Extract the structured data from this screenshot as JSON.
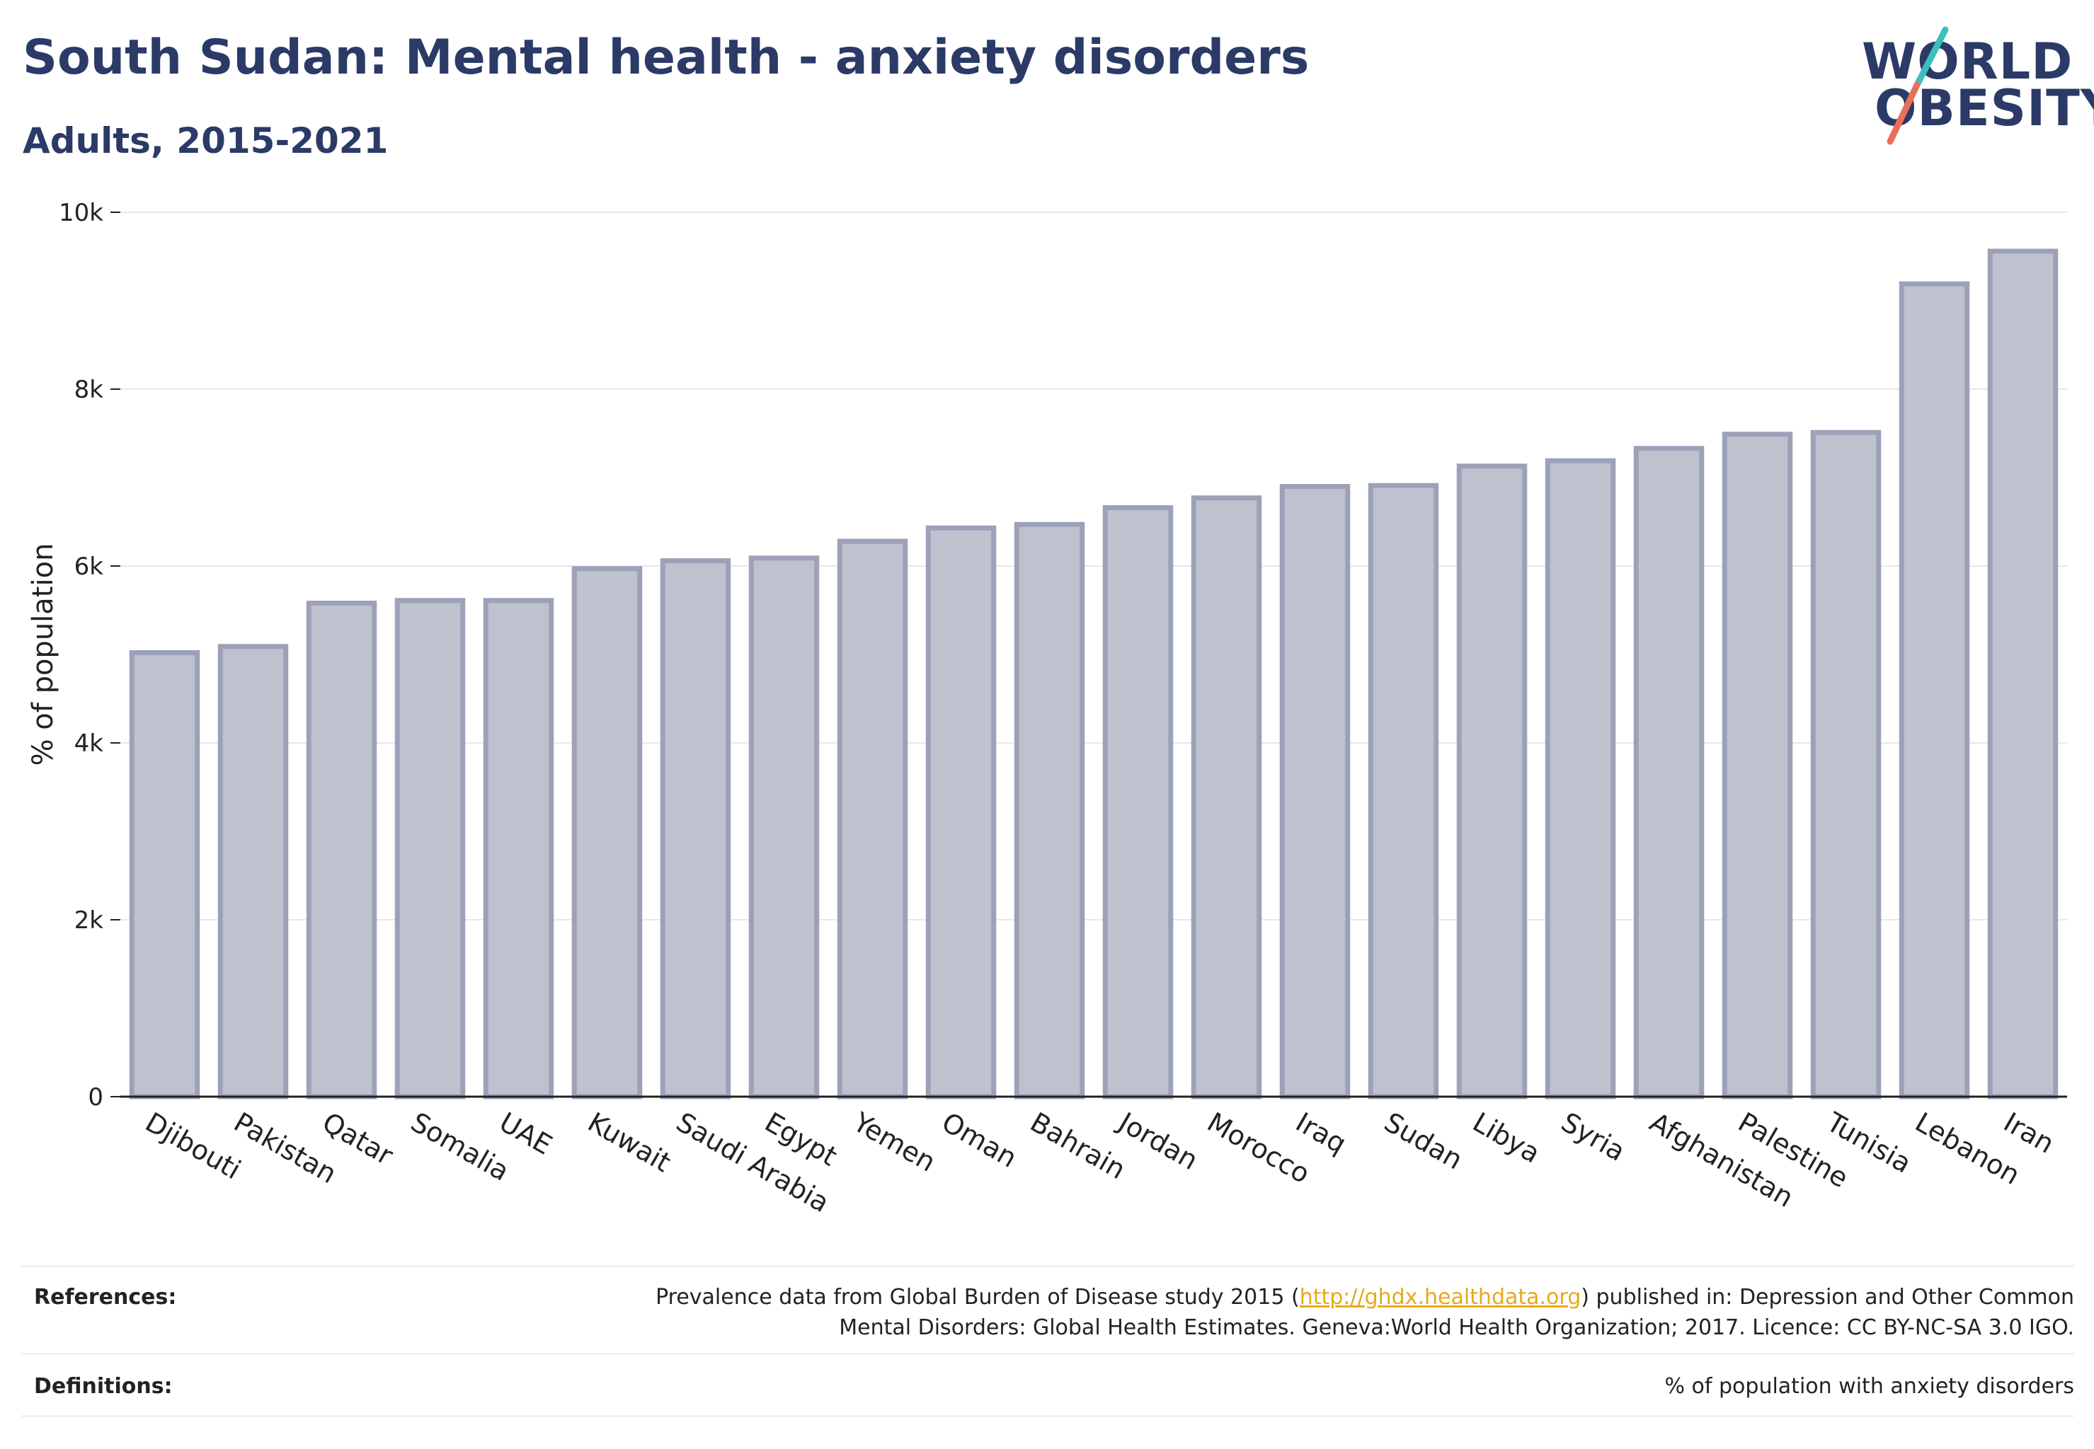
{
  "header": {
    "title": "South Sudan: Mental health - anxiety disorders",
    "subtitle": "Adults, 2015-2021"
  },
  "logo": {
    "line1": "WORLD",
    "line2": "OBESITY",
    "accent_teal": "#3bbfbf",
    "accent_red": "#e8705a"
  },
  "chart_data": {
    "type": "bar",
    "categories": [
      "Djibouti",
      "Pakistan",
      "Qatar",
      "Somalia",
      "UAE",
      "Kuwait",
      "Saudi Arabia",
      "Egypt",
      "Yemen",
      "Oman",
      "Bahrain",
      "Jordan",
      "Morocco",
      "Iraq",
      "Sudan",
      "Libya",
      "Syria",
      "Afghanistan",
      "Palestine",
      "Tunisia",
      "Lebanon",
      "Iran"
    ],
    "values": [
      5020,
      5090,
      5580,
      5610,
      5610,
      5970,
      6060,
      6090,
      6280,
      6430,
      6470,
      6660,
      6770,
      6900,
      6910,
      7130,
      7190,
      7330,
      7490,
      7510,
      9190,
      9560
    ],
    "ylabel": "% of population",
    "xlabel": "",
    "ylim": [
      0,
      10000
    ],
    "yticks": [
      0,
      2000,
      4000,
      6000,
      8000,
      10000
    ],
    "ytick_labels": [
      "0",
      "2k",
      "4k",
      "6k",
      "8k",
      "10k"
    ],
    "grid": true,
    "bar_fill": "#bec1ce",
    "bar_stroke": "#9da1b8"
  },
  "footer": {
    "references_label": "References:",
    "references_text_before": "Prevalence data from Global Burden of Disease study 2015 (",
    "references_link": "http://ghdx.healthdata.org",
    "references_text_after": ") published in: Depression and Other Common",
    "references_line2": "Mental Disorders: Global Health Estimates. Geneva:World Health Organization; 2017. Licence: CC BY-NC-SA 3.0 IGO.",
    "definitions_label": "Definitions:",
    "definitions_text": "% of population with anxiety disorders"
  }
}
